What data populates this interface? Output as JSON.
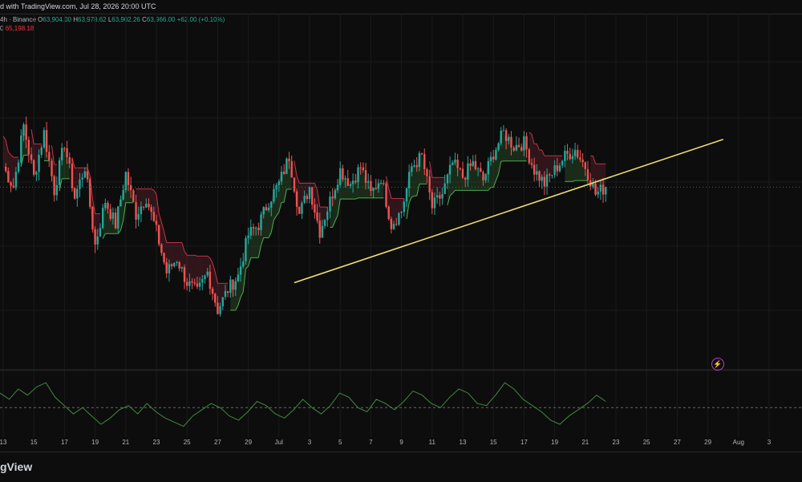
{
  "header": {
    "caption": "d with TradingView.com, Jul 28, 2026 20:00 UTC"
  },
  "legend": {
    "symbol": "4h · Binance",
    "o_label": "O",
    "o_value": "63,904.00",
    "h_label": "H",
    "h_value": "63,978.62",
    "l_label": "L",
    "l_value": "63,902.26",
    "c_label": "C",
    "c_value": "63,966.00",
    "change": "+62.00 (+0.10%)",
    "indicator_value": "65,198.18",
    "indicator_prefix": "0"
  },
  "footer": {
    "brand": "gView"
  },
  "colors": {
    "up": "#26a69a",
    "down": "#ef5350",
    "trend_line": "#e8e070",
    "supertrend_up": "#3f7a3c",
    "supertrend_down": "#8c2f3f",
    "oscillator": "#3f8a3f"
  },
  "chart_data": {
    "type": "candlestick",
    "interval": "4h",
    "x_ticks": [
      "13",
      "15",
      "17",
      "19",
      "21",
      "23",
      "25",
      "27",
      "29",
      "Jul",
      "3",
      "5",
      "7",
      "9",
      "11",
      "13",
      "15",
      "17",
      "19",
      "21",
      "23",
      "25",
      "27",
      "29",
      "Aug",
      "3"
    ],
    "trend_line": {
      "from": [
        "Jul 2",
        61200
      ],
      "to": [
        "Jul 30",
        65400
      ]
    },
    "pivots": [
      [
        0,
        64600
      ],
      [
        4,
        64000
      ],
      [
        8,
        65800
      ],
      [
        12,
        64300
      ],
      [
        16,
        65600
      ],
      [
        20,
        63900
      ],
      [
        24,
        65300
      ],
      [
        28,
        63700
      ],
      [
        32,
        64600
      ],
      [
        36,
        62300
      ],
      [
        40,
        63600
      ],
      [
        44,
        62900
      ],
      [
        48,
        64400
      ],
      [
        52,
        63200
      ],
      [
        56,
        63700
      ],
      [
        60,
        62700
      ],
      [
        64,
        61500
      ],
      [
        68,
        61900
      ],
      [
        72,
        61200
      ],
      [
        76,
        60900
      ],
      [
        80,
        61500
      ],
      [
        84,
        60400
      ],
      [
        88,
        61000
      ],
      [
        92,
        61400
      ],
      [
        96,
        62600
      ],
      [
        100,
        62900
      ],
      [
        104,
        63600
      ],
      [
        108,
        64100
      ],
      [
        112,
        64900
      ],
      [
        116,
        63200
      ],
      [
        120,
        64000
      ],
      [
        124,
        62700
      ],
      [
        128,
        63600
      ],
      [
        132,
        64500
      ],
      [
        136,
        64100
      ],
      [
        140,
        64600
      ],
      [
        144,
        63800
      ],
      [
        148,
        64300
      ],
      [
        152,
        62900
      ],
      [
        156,
        63300
      ],
      [
        160,
        64600
      ],
      [
        164,
        64900
      ],
      [
        168,
        63400
      ],
      [
        172,
        63800
      ],
      [
        176,
        64700
      ],
      [
        180,
        64300
      ],
      [
        184,
        64700
      ],
      [
        188,
        64200
      ],
      [
        192,
        65000
      ],
      [
        196,
        65600
      ],
      [
        200,
        65200
      ],
      [
        204,
        65300
      ],
      [
        208,
        64500
      ],
      [
        212,
        64100
      ],
      [
        216,
        64500
      ],
      [
        220,
        64900
      ],
      [
        224,
        65100
      ],
      [
        228,
        64600
      ],
      [
        232,
        63800
      ],
      [
        236,
        64000
      ]
    ],
    "oscillator": [
      55,
      52,
      57,
      54,
      58,
      60,
      53,
      49,
      45,
      48,
      44,
      40,
      43,
      47,
      49,
      45,
      50,
      46,
      43,
      41,
      39,
      44,
      47,
      50,
      48,
      44,
      42,
      46,
      51,
      49,
      45,
      43,
      47,
      52,
      48,
      45,
      49,
      55,
      53,
      48,
      46,
      52,
      50,
      47,
      51,
      56,
      54,
      50,
      48,
      53,
      57,
      55,
      50,
      49,
      54,
      60,
      57,
      52,
      49,
      46,
      42,
      40,
      44,
      47,
      50,
      54,
      51
    ]
  }
}
